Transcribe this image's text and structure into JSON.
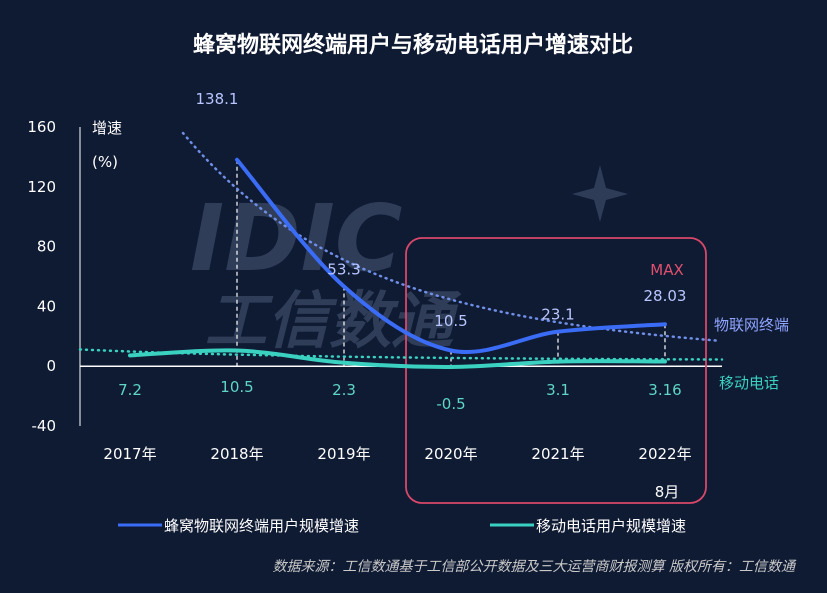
{
  "title": "蜂窝物联网终端用户与移动电话用户增速对比",
  "watermark": {
    "logo": "IDIC",
    "text": "工信数通"
  },
  "chart_data": {
    "type": "line",
    "categories": [
      "2017年",
      "2018年",
      "2019年",
      "2020年",
      "2021年",
      "2022年"
    ],
    "category_note": "8月",
    "ylabel": "增速",
    "yunit": "(%)",
    "ylim": [
      -40,
      160
    ],
    "yticks": [
      160,
      120,
      80,
      40,
      0,
      -40
    ],
    "series": [
      {
        "name": "蜂窝物联网终端用户规模增速",
        "short_name": "物联网终端",
        "color": "#3a6cf5",
        "values": [
          null,
          138.1,
          53.3,
          10.5,
          23.1,
          28.03
        ],
        "labels": [
          "",
          "138.1",
          "53.3",
          "10.5",
          "23.1",
          "28.03"
        ],
        "trend_color": "#6f8fe8"
      },
      {
        "name": "移动电话用户规模增速",
        "short_name": "移动电话",
        "color": "#3ad1c0",
        "values": [
          7.2,
          10.5,
          2.3,
          -0.5,
          3.1,
          3.16
        ],
        "labels": [
          "7.2",
          "10.5",
          "2.3",
          "-0.5",
          "3.1",
          "3.16"
        ],
        "trend_color": "#3ad1c0"
      }
    ],
    "annotation": {
      "text": "MAX",
      "color": "#e0506e"
    },
    "legend": "bottom",
    "source": "数据来源：工信数通基于工信部公开数据及三大运营商财报测算    版权所有：工信数通"
  }
}
